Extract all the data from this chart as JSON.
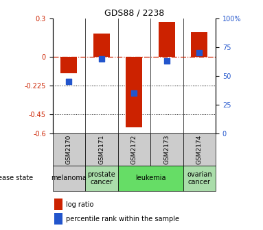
{
  "title": "GDS88 / 2238",
  "samples": [
    "GSM2170",
    "GSM2171",
    "GSM2172",
    "GSM2173",
    "GSM2174"
  ],
  "log_ratio": [
    -0.13,
    0.18,
    -0.55,
    0.27,
    0.19
  ],
  "percentile": [
    45,
    65,
    35,
    63,
    70
  ],
  "disease_states": [
    "melanoma",
    "prostate cancer",
    "leukemia",
    "leukemia",
    "ovarian cancer"
  ],
  "disease_label_colors": {
    "melanoma": "#cccccc",
    "prostate cancer": "#aaddaa",
    "leukemia": "#66dd66",
    "ovarian cancer": "#aaddaa"
  },
  "gsm_box_color": "#cccccc",
  "ylim_left": [
    -0.6,
    0.3
  ],
  "ylim_right": [
    0,
    100
  ],
  "yticks_left": [
    0.3,
    0.0,
    -0.225,
    -0.45,
    -0.6
  ],
  "ytick_labels_left": [
    "0.3",
    "0",
    "-0.225",
    "-0.45",
    "-0.6"
  ],
  "yticks_right": [
    100,
    75,
    50,
    25,
    0
  ],
  "ytick_labels_right": [
    "100%",
    "75",
    "50",
    "25",
    "0"
  ],
  "bar_color": "#cc2200",
  "square_color": "#2255cc",
  "dotted_lines": [
    -0.225,
    -0.45
  ],
  "legend_log_ratio": "log ratio",
  "legend_percentile": "percentile rank within the sample",
  "disease_label": "disease state",
  "bar_width": 0.5,
  "square_size": 30,
  "title_fontsize": 9,
  "tick_fontsize": 7,
  "label_fontsize": 7,
  "gsm_fontsize": 6.5,
  "disease_fontsize": 7
}
